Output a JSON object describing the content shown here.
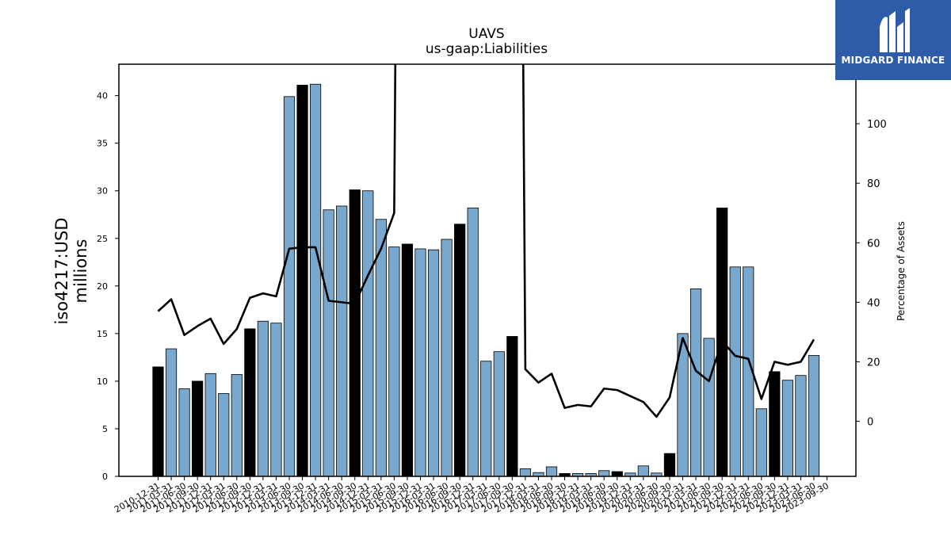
{
  "chart_data": {
    "type": "bar",
    "title": "UAVS",
    "subtitle": "us-gaap:Liabilities",
    "ylabel_line1": "iso4217:USD",
    "ylabel_line2": "millions",
    "y2label": "Percentage of Assets",
    "ylim": [
      0,
      43.3
    ],
    "y2lim": [
      -18.5,
      120
    ],
    "yticks": [
      0,
      5,
      10,
      15,
      20,
      25,
      30,
      35,
      40
    ],
    "y2ticks": [
      0,
      20,
      40,
      60,
      80,
      100
    ],
    "categories": [
      "2010-12-31",
      "2011-03-31",
      "2011-06-30",
      "2011-09-30",
      "2011-12-31",
      "2012-03-31",
      "2012-06-30",
      "2012-09-30",
      "2012-12-31",
      "2013-03-31",
      "2013-06-30",
      "2013-09-30",
      "2013-12-31",
      "2014-03-31",
      "2014-06-30",
      "2014-09-30",
      "2014-12-31",
      "2015-03-31",
      "2015-06-30",
      "2015-09-30",
      "2015-12-31",
      "2016-03-31",
      "2016-06-30",
      "2016-09-30",
      "2016-12-31",
      "2017-03-31",
      "2017-06-30",
      "2017-09-30",
      "2017-12-31",
      "2018-03-31",
      "2018-06-30",
      "2018-09-30",
      "2018-12-31",
      "2019-03-31",
      "2019-06-30",
      "2019-09-30",
      "2019-12-31",
      "2020-03-31",
      "2020-06-30",
      "2020-09-30",
      "2020-12-31",
      "2021-03-31",
      "2021-06-30",
      "2021-09-30",
      "2021-12-31",
      "2022-03-31",
      "2022-06-30",
      "2022-09-30",
      "2022-12-31",
      "2023-03-31",
      "2023-06-30",
      "2023-09-30"
    ],
    "values": [
      11.5,
      13.4,
      9.2,
      10.0,
      10.8,
      8.7,
      10.7,
      15.5,
      16.3,
      16.1,
      39.9,
      41.1,
      41.2,
      28.0,
      28.4,
      30.1,
      30.0,
      27.0,
      24.1,
      24.4,
      23.9,
      23.8,
      24.9,
      26.5,
      28.2,
      12.1,
      13.1,
      14.7,
      0.8,
      0.4,
      1.0,
      0.3,
      0.3,
      0.3,
      0.6,
      0.5,
      0.35,
      1.1,
      0.35,
      2.4,
      15.0,
      19.7,
      14.5,
      28.2,
      22.0,
      22.0,
      7.1,
      11.0,
      10.1,
      10.6,
      12.7,
      null
    ],
    "annual_flags": [
      1,
      0,
      0,
      1,
      0,
      0,
      0,
      1,
      0,
      0,
      0,
      1,
      0,
      0,
      0,
      1,
      0,
      0,
      0,
      1,
      0,
      0,
      0,
      1,
      0,
      0,
      0,
      1,
      0,
      0,
      0,
      1,
      0,
      0,
      0,
      1,
      0,
      0,
      0,
      1,
      0,
      0,
      0,
      1,
      0,
      0,
      0,
      1,
      0,
      0,
      0,
      0
    ],
    "pct_of_assets": [
      37,
      41,
      29,
      32,
      34.5,
      26,
      31,
      41.5,
      43,
      42,
      58,
      58.5,
      58.5,
      40.5,
      40,
      39.5,
      49,
      58,
      70,
      null,
      null,
      null,
      null,
      null,
      null,
      null,
      null,
      null,
      17.5,
      13,
      16,
      4.5,
      5.5,
      5,
      11,
      10.5,
      8.5,
      6.5,
      1.5,
      8,
      28,
      17,
      13.5,
      27,
      22,
      21,
      7.5,
      20,
      19,
      20,
      27.5,
      null
    ],
    "colors": {
      "quarterly_bar": "#7aa7cc",
      "annual_bar": "#000000",
      "line": "#000000"
    }
  },
  "logo": {
    "text": "MIDGARD FINANCE",
    "background": "#2f5ca8"
  }
}
